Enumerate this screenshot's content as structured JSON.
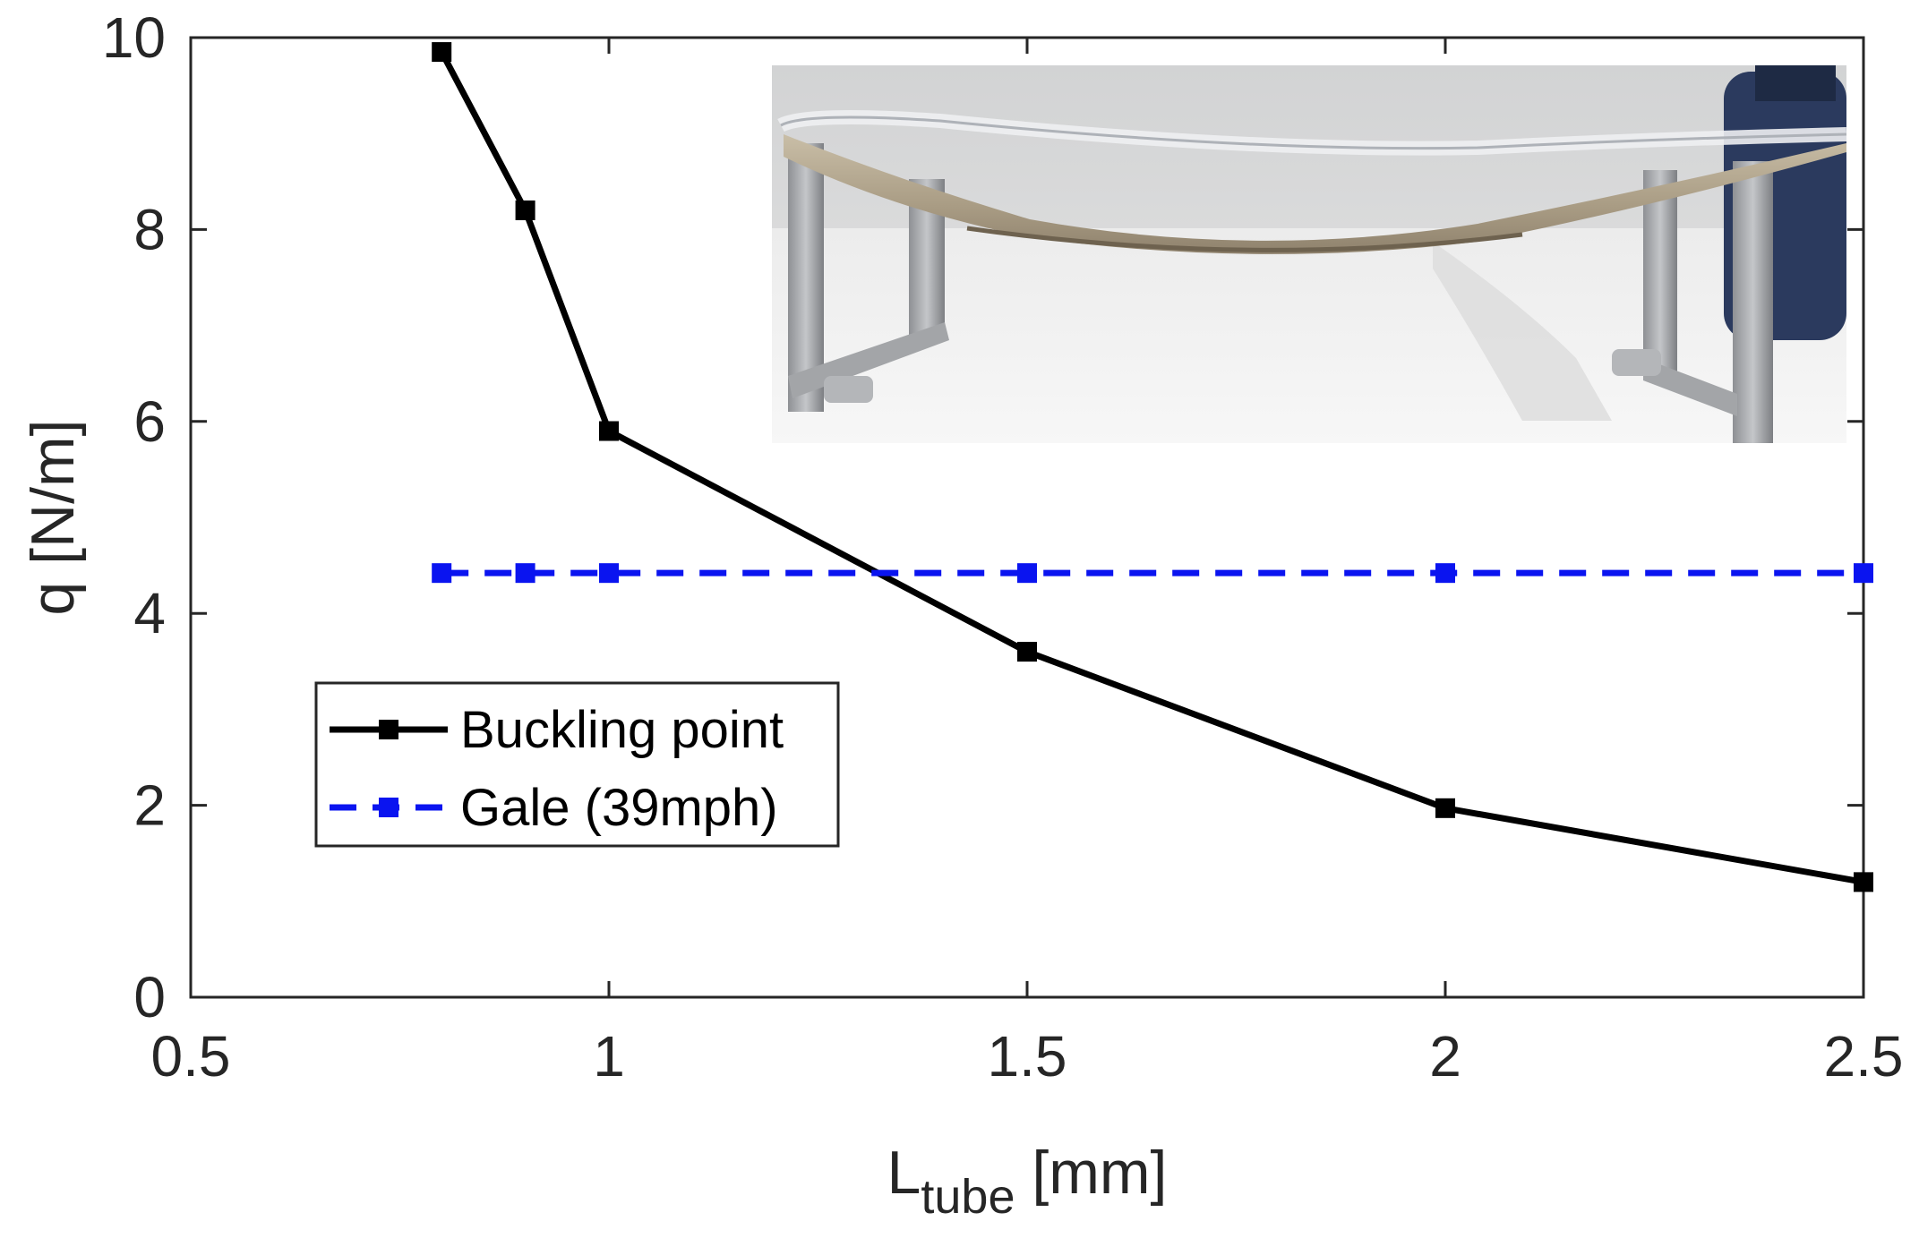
{
  "chart_data": {
    "type": "line",
    "xlabel_main": "L",
    "xlabel_sub": "tube",
    "xlabel_unit": " [mm]",
    "ylabel": "q [N/m]",
    "xlim": [
      0.5,
      2.5
    ],
    "ylim": [
      0,
      10
    ],
    "xticks": [
      0.5,
      1,
      1.5,
      2,
      2.5
    ],
    "xtick_labels": [
      "0.5",
      "1",
      "1.5",
      "2",
      "2.5"
    ],
    "yticks": [
      0,
      2,
      4,
      6,
      8,
      10
    ],
    "ytick_labels": [
      "0",
      "2",
      "4",
      "6",
      "8",
      "10"
    ],
    "grid": false,
    "legend_position": "lower-left",
    "series": [
      {
        "name": "Buckling point",
        "color": "#000000",
        "line_style": "solid",
        "marker": "square",
        "x": [
          0.8,
          0.9,
          1.0,
          1.5,
          2.0,
          2.5
        ],
        "y": [
          9.85,
          8.2,
          5.9,
          3.6,
          1.97,
          1.2
        ]
      },
      {
        "name": "Gale (39mph)",
        "color": "#0a14f0",
        "line_style": "dashed",
        "marker": "square",
        "x": [
          0.8,
          0.9,
          1.0,
          1.5,
          2.0,
          2.5
        ],
        "y": [
          4.42,
          4.42,
          4.42,
          4.42,
          4.42,
          4.42
        ]
      }
    ],
    "inset": {
      "description_icon": "photo-inset",
      "position": "top-right"
    }
  }
}
